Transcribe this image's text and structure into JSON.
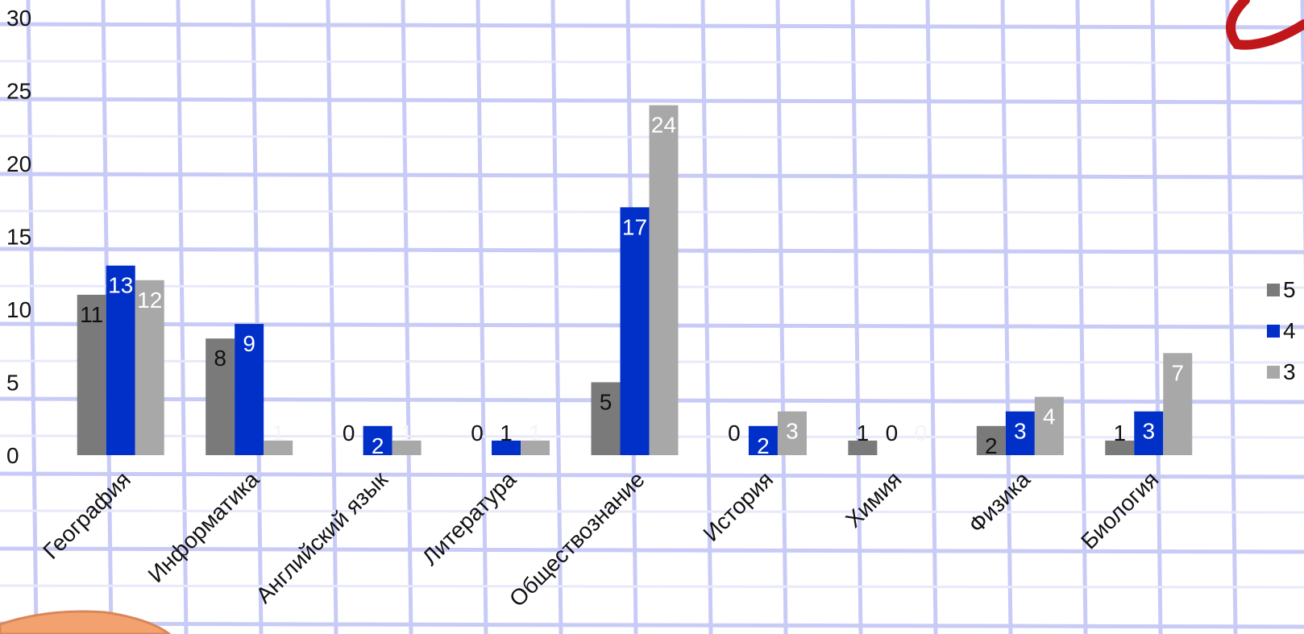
{
  "colors": {
    "background": "#ffffff",
    "grid_lines": "#c9cbf7",
    "grid_lines_light": "#e8e9fb",
    "orange_shape": "#f2a16f",
    "red_ribbon": "#c0171b",
    "axis_text": "#111111"
  },
  "chart_data": {
    "type": "bar",
    "categories": [
      "География",
      "Информатика",
      "Английский язык",
      "Литература",
      "Обществознание",
      "История",
      "Химия",
      "Физика",
      "Биология"
    ],
    "series": [
      {
        "name": "5",
        "color": "#7a7a7a",
        "values": [
          11,
          8,
          0,
          0,
          5,
          0,
          1,
          2,
          1
        ]
      },
      {
        "name": "4",
        "color": "#0030c8",
        "values": [
          13,
          9,
          2,
          1,
          17,
          2,
          0,
          3,
          3
        ]
      },
      {
        "name": "3",
        "color": "#a8a8a8",
        "values": [
          12,
          1,
          1,
          1,
          24,
          3,
          0,
          4,
          7
        ]
      }
    ],
    "ylim": [
      0,
      30
    ],
    "yticks": [
      0,
      5,
      10,
      15,
      20,
      25,
      30
    ],
    "grid": false,
    "legend_position": "right",
    "data_labels": true
  }
}
